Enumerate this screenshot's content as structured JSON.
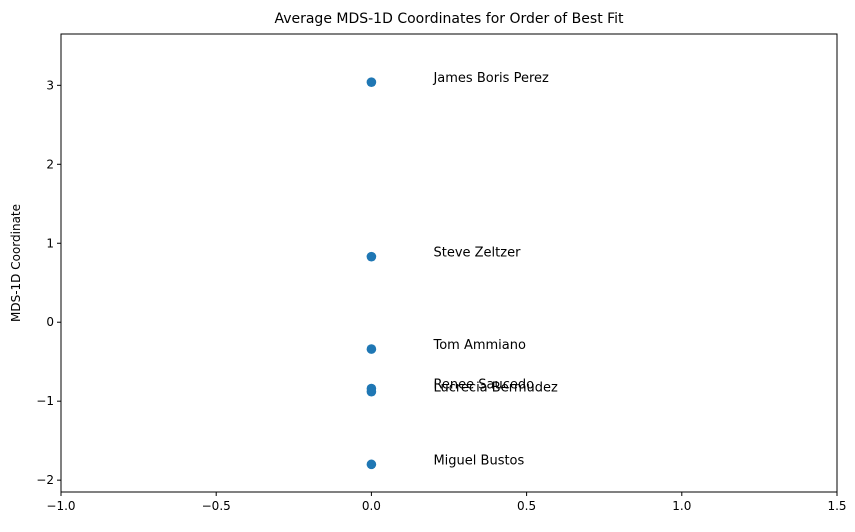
{
  "chart_data": {
    "type": "scatter",
    "title": "Average MDS-1D Coordinates for Order of Best Fit",
    "xlabel": "",
    "ylabel": "MDS-1D Coordinate",
    "xlim": [
      -1.0,
      1.5
    ],
    "ylim": [
      -2.15,
      3.65
    ],
    "xticks": [
      {
        "value": -1.0,
        "label": "−1.0"
      },
      {
        "value": -0.5,
        "label": "−0.5"
      },
      {
        "value": 0.0,
        "label": "0.0"
      },
      {
        "value": 0.5,
        "label": "0.5"
      },
      {
        "value": 1.0,
        "label": "1.0"
      },
      {
        "value": 1.5,
        "label": "1.5"
      }
    ],
    "yticks": [
      {
        "value": -2,
        "label": "−2"
      },
      {
        "value": -1,
        "label": "−1"
      },
      {
        "value": 0,
        "label": "0"
      },
      {
        "value": 1,
        "label": "1"
      },
      {
        "value": 2,
        "label": "2"
      },
      {
        "value": 3,
        "label": "3"
      }
    ],
    "grid": false,
    "marker_color": "#1f77b4",
    "points": [
      {
        "label": "James Boris Perez",
        "x": 0.0,
        "y": 3.04
      },
      {
        "label": "Steve Zeltzer",
        "x": 0.0,
        "y": 0.83
      },
      {
        "label": "Tom Ammiano",
        "x": 0.0,
        "y": -0.34
      },
      {
        "label": "Renee Saucedo",
        "x": 0.0,
        "y": -0.84
      },
      {
        "label": "Lucrecia Bermudez",
        "x": 0.0,
        "y": -0.88
      },
      {
        "label": "Miguel Bustos",
        "x": 0.0,
        "y": -1.8
      }
    ],
    "label_x_offset": 0.2
  }
}
